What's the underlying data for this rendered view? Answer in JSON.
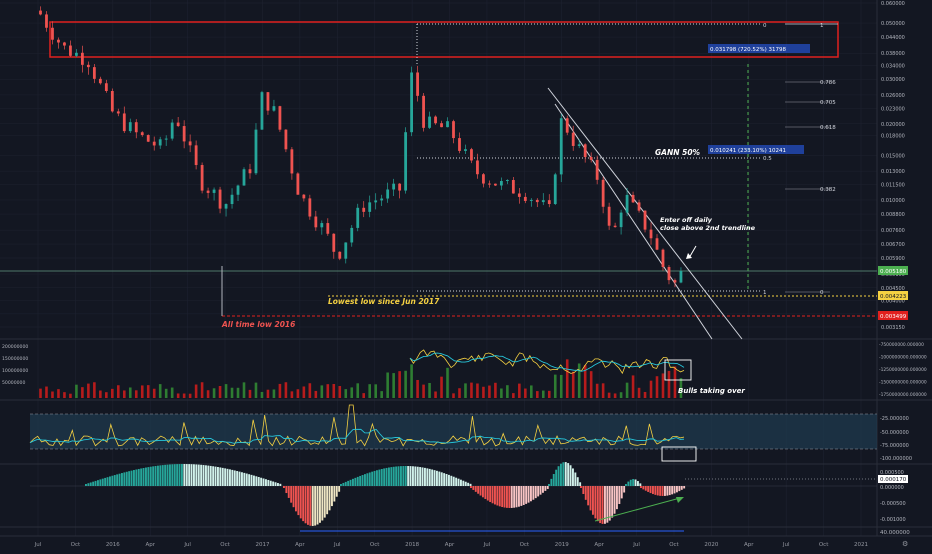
{
  "colors": {
    "background": "#131722",
    "grid": "#1e2230",
    "up": "#26a69a",
    "down": "#ef5350",
    "text": "#b2b5be",
    "white_line": "#d1d4dc",
    "red_box": "#e0201e",
    "green_dash": "#4caf50",
    "gann_label_bg": "#2962ff",
    "yellow": "#f5d142",
    "teal_ma": "#26c6da",
    "blue_band": "#1f3a4d",
    "hist_teal": "#26a69a",
    "hist_white": "#d1f2eb",
    "hist_red": "#ef5350",
    "hist_pink": "#f8c4c4",
    "hist_cream": "#efe6c4",
    "arrow_green": "#4caf50"
  },
  "annotations": {
    "all_time_low": "All time low 2016",
    "lowest_low": "Lowest low since Jun 2017",
    "gann": "GANN 50%",
    "enter_line1": "Enter off daily",
    "enter_line2": "close above  2nd trendline",
    "bulls": "Bulls taking over",
    "measure_top": "0.031798 (720.52%) 31798",
    "measure_mid": "0.010241 (233.10%) 10241"
  },
  "fib_labels": {
    "zero_top": "0",
    "one_top": "1",
    "f786": "0.786",
    "f705": "0.705",
    "f618": "0.618",
    "f5": "0.5",
    "f382": "0.382",
    "one_bot": "1",
    "zero_bot": "0"
  },
  "price_axis": [
    "0.060000",
    "0.050000",
    "0.044000",
    "0.038000",
    "0.034000",
    "0.030000",
    "0.026000",
    "0.023000",
    "0.020000",
    "0.018000",
    "0.015000",
    "0.013000",
    "0.011500",
    "0.010000",
    "0.008800",
    "0.007600",
    "0.006700",
    "0.005900",
    "0.005100",
    "0.004500",
    "0.004000",
    "0.003550",
    "0.003150"
  ],
  "price_badges": {
    "current": "0.005180",
    "lowest": "0.004223",
    "atl": "0.003499"
  },
  "volume_axis": [
    "200000000",
    "150000000",
    "100000000",
    "50000000"
  ],
  "volume_right_axis": [
    "-750000000.000000",
    "-1000000000.000000",
    "-1250000000.000000",
    "-1500000000.000000",
    "-1750000000.000000"
  ],
  "osc_axis": [
    "-25.000000",
    "-50.000000",
    "-75.000000",
    "-100.000000"
  ],
  "macd_axis": [
    "0.000500",
    "0.000000",
    "-0.000500",
    "-0.001000"
  ],
  "macd_badge": "0.000170",
  "bottom_axis_value": "40.000000",
  "time_axis": [
    "Jul",
    "Oct",
    "2016",
    "Apr",
    "Jul",
    "Oct",
    "2017",
    "Apr",
    "Jul",
    "Oct",
    "2018",
    "Apr",
    "Jul",
    "Oct",
    "2019",
    "Apr",
    "Jul",
    "Oct",
    "2020",
    "Apr",
    "Jul",
    "Oct",
    "2021"
  ],
  "chart_data": {
    "type": "candlestick",
    "x_range": [
      "2015-07",
      "2021-01"
    ],
    "ylim": [
      0.00315,
      0.06
    ],
    "log_scale": true,
    "grid": true,
    "legend": "none",
    "key_levels": [
      {
        "label": "All time low 2016",
        "value": 0.003499
      },
      {
        "label": "Lowest low since Jun 2017",
        "value": 0.004223
      },
      {
        "label": "current",
        "value": 0.00518
      }
    ],
    "close_path": [
      [
        "2015-07",
        0.056
      ],
      [
        "2015-09",
        0.04
      ],
      [
        "2015-11",
        0.036
      ],
      [
        "2016-01",
        0.022
      ],
      [
        "2016-03",
        0.018
      ],
      [
        "2016-05",
        0.016
      ],
      [
        "2016-06",
        0.022
      ],
      [
        "2016-08",
        0.012
      ],
      [
        "2016-10",
        0.0096
      ],
      [
        "2016-12",
        0.0135
      ],
      [
        "2017-01",
        0.026
      ],
      [
        "2017-02",
        0.022
      ],
      [
        "2017-04",
        0.0105
      ],
      [
        "2017-06",
        0.0075
      ],
      [
        "2017-07",
        0.006
      ],
      [
        "2017-09",
        0.0095
      ],
      [
        "2017-11",
        0.0105
      ],
      [
        "2017-12",
        0.011
      ],
      [
        "2018-01",
        0.032
      ],
      [
        "2018-02",
        0.02
      ],
      [
        "2018-04",
        0.019
      ],
      [
        "2018-06",
        0.013
      ],
      [
        "2018-08",
        0.0115
      ],
      [
        "2018-10",
        0.0108
      ],
      [
        "2018-12",
        0.009
      ],
      [
        "2019-01",
        0.021
      ],
      [
        "2019-02",
        0.017
      ],
      [
        "2019-04",
        0.012
      ],
      [
        "2019-05",
        0.0068
      ],
      [
        "2019-06",
        0.0105
      ],
      [
        "2019-07",
        0.0088
      ],
      [
        "2019-08",
        0.0076
      ],
      [
        "2019-09",
        0.0056
      ],
      [
        "2019-10",
        0.0046
      ],
      [
        "2019-10-20",
        0.00518
      ]
    ]
  }
}
